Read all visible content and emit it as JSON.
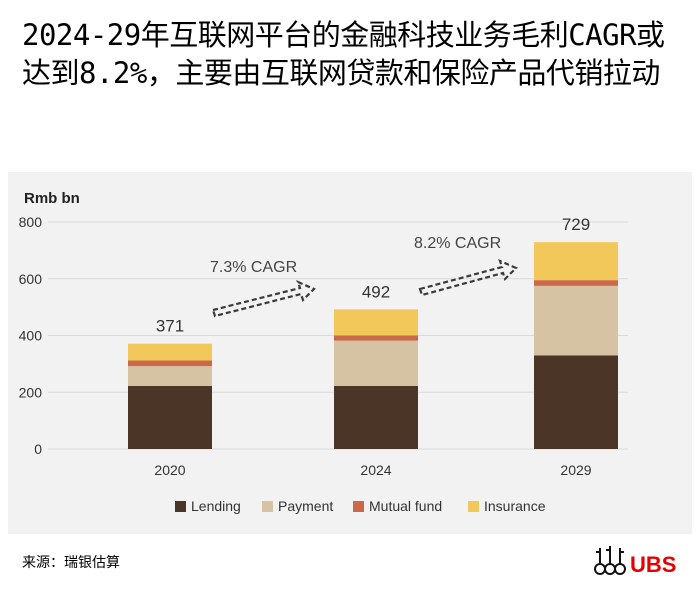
{
  "headline": "2024-29年互联网平台的金融科技业务毛利CAGR或达到8.2%，主要由互联网贷款和保险产品代销拉动",
  "source": "来源：瑞银估算",
  "logo_text": "UBS",
  "colors": {
    "lending": "#4a3526",
    "payment": "#d6c3a3",
    "mutual_fund": "#c9694a",
    "insurance": "#f2c85b",
    "panel": "#f2f2f2",
    "gridline": "#d9d9d9",
    "ubs_red": "#e60000"
  },
  "chart_data": {
    "type": "bar",
    "stacked": true,
    "unit_label": "Rmb bn",
    "categories": [
      "2020",
      "2024",
      "2029"
    ],
    "series": [
      {
        "name": "Lending",
        "values": [
          222,
          222,
          330
        ]
      },
      {
        "name": "Payment",
        "values": [
          70,
          160,
          245
        ]
      },
      {
        "name": "Mutual fund",
        "values": [
          20,
          18,
          20
        ]
      },
      {
        "name": "Insurance",
        "values": [
          59,
          92,
          134
        ]
      }
    ],
    "totals": [
      "371",
      "492",
      "729"
    ],
    "annotations": [
      "7.3% CAGR",
      "8.2% CAGR"
    ],
    "ylim": [
      0,
      800
    ],
    "yticks": [
      0,
      200,
      400,
      600,
      800
    ],
    "grid": true,
    "legend": "bottom"
  }
}
